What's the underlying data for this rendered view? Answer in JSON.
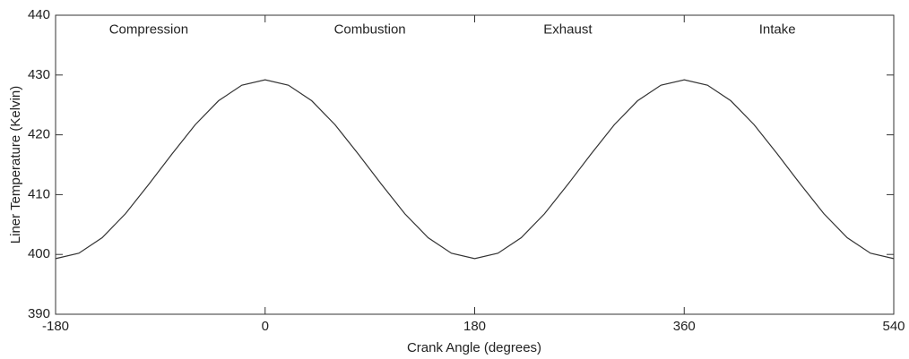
{
  "chart_data": {
    "type": "line",
    "xlabel": "Crank Angle (degrees)",
    "ylabel": "Liner Temperature (Kelvin)",
    "x": [
      -180,
      -160,
      -140,
      -120,
      -100,
      -80,
      -60,
      -40,
      -20,
      0,
      20,
      40,
      60,
      80,
      100,
      120,
      140,
      160,
      180,
      200,
      220,
      240,
      260,
      280,
      300,
      320,
      340,
      360,
      380,
      400,
      420,
      440,
      460,
      480,
      500,
      520,
      540
    ],
    "series": [
      {
        "color": "#333333",
        "values": [
          399.3,
          400.2,
          402.8,
          406.8,
          411.7,
          416.8,
          421.7,
          425.7,
          428.3,
          429.2,
          428.3,
          425.7,
          421.7,
          416.8,
          411.7,
          406.8,
          402.8,
          400.2,
          399.3,
          400.2,
          402.8,
          406.8,
          411.7,
          416.8,
          421.7,
          425.7,
          428.3,
          429.2,
          428.3,
          425.7,
          421.7,
          416.8,
          411.7,
          406.8,
          402.8,
          400.2,
          399.3
        ]
      }
    ],
    "xlim": [
      -180,
      540
    ],
    "xticks": [
      -180,
      0,
      180,
      360,
      540
    ],
    "ylim": [
      390,
      440
    ],
    "yticks": [
      390,
      400,
      410,
      420,
      430,
      440
    ],
    "annotations": [
      {
        "text": "Compression",
        "x": -100,
        "y": 437.5
      },
      {
        "text": "Combustion",
        "x": 90,
        "y": 437.5
      },
      {
        "text": "Exhaust",
        "x": 260,
        "y": 437.5
      },
      {
        "text": "Intake",
        "x": 440,
        "y": 437.5
      }
    ]
  }
}
